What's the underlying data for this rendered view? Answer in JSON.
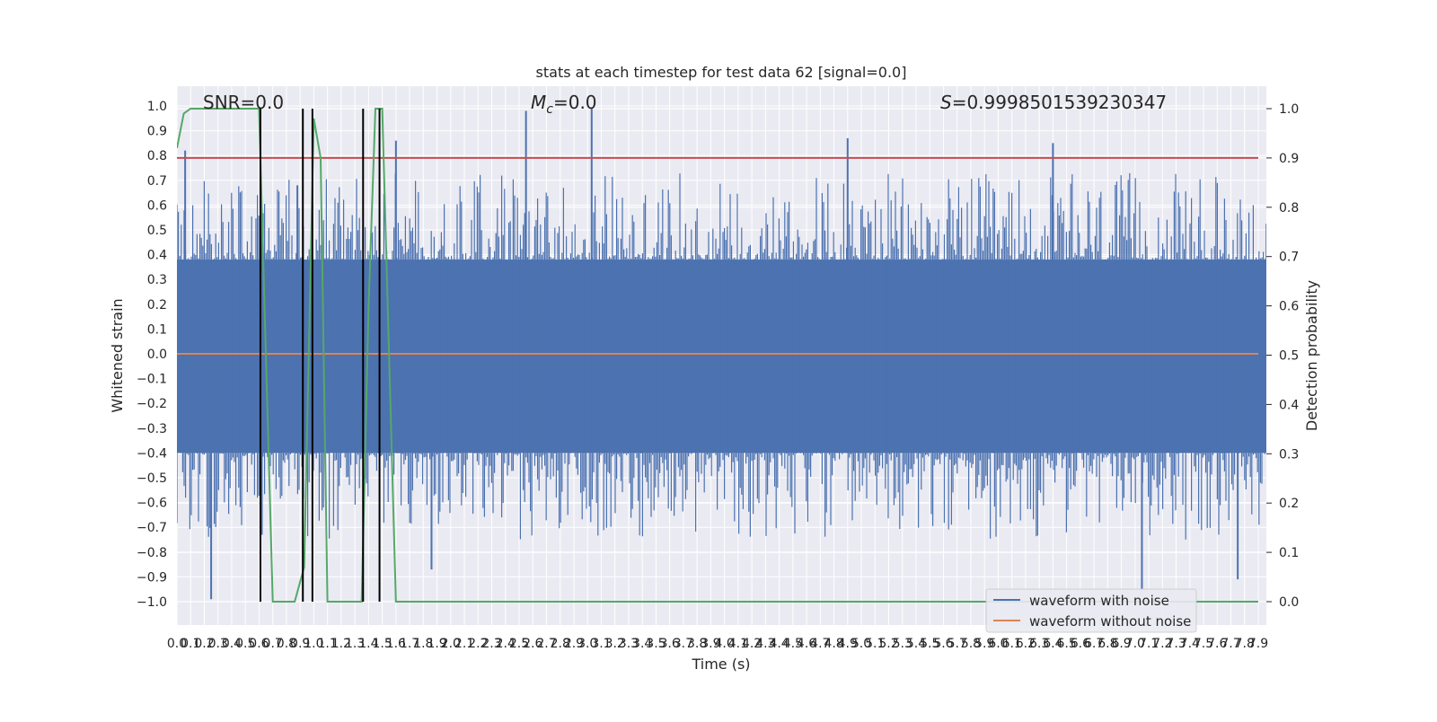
{
  "figure": {
    "title": "stats at each timestep for test data 62 [signal=0.0]",
    "annotations": {
      "snr": "SNR=0.0",
      "mc_symbol": "M",
      "mc_subscript": "c",
      "mc_value": "=0.0",
      "s_symbol": "S",
      "s_value": "=0.9998501539230347"
    },
    "xlabel": "Time (s)",
    "ylabel_left": "Whitened strain",
    "ylabel_right": "Detection probability",
    "legend": [
      {
        "label": "waveform with noise",
        "color": "#4c72b0"
      },
      {
        "label": "waveform without noise",
        "color": "#dd8452"
      }
    ]
  },
  "chart_data": {
    "type": "line",
    "style": "seaborn-darkgrid",
    "background": "#eaeaf2",
    "grid": true,
    "legend_position": "lower-right",
    "x_axis": {
      "label": "Time (s)",
      "range": [
        0.0,
        7.9
      ],
      "ticks": [
        0.0,
        0.1,
        0.2,
        0.3,
        0.4,
        0.5,
        0.6,
        0.7,
        0.8,
        0.9,
        1.0,
        1.1,
        1.2,
        1.3,
        1.4,
        1.5,
        1.6,
        1.7,
        1.8,
        1.9,
        2.0,
        2.1,
        2.2,
        2.3,
        2.4,
        2.5,
        2.6,
        2.7,
        2.8,
        2.9,
        3.0,
        3.1,
        3.2,
        3.3,
        3.4,
        3.5,
        3.6,
        3.7,
        3.8,
        3.9,
        4.0,
        4.1,
        4.2,
        4.3,
        4.4,
        4.5,
        4.6,
        4.7,
        4.8,
        4.9,
        5.0,
        5.1,
        5.2,
        5.3,
        5.4,
        5.5,
        5.6,
        5.7,
        5.8,
        5.9,
        6.0,
        6.1,
        6.2,
        6.3,
        6.4,
        6.5,
        6.6,
        6.7,
        6.8,
        6.9,
        7.0,
        7.1,
        7.2,
        7.3,
        7.4,
        7.5,
        7.6,
        7.7,
        7.8,
        7.9
      ]
    },
    "y_left": {
      "label": "Whitened strain",
      "range": [
        -1.0,
        1.0
      ],
      "ticks": [
        -1.0,
        -0.9,
        -0.8,
        -0.7,
        -0.6,
        -0.5,
        -0.4,
        -0.3,
        -0.2,
        -0.1,
        0.0,
        0.1,
        0.2,
        0.3,
        0.4,
        0.5,
        0.6,
        0.7,
        0.8,
        0.9,
        1.0
      ]
    },
    "y_right": {
      "label": "Detection probability",
      "range": [
        0.0,
        1.0
      ],
      "ticks": [
        0.0,
        0.1,
        0.2,
        0.3,
        0.4,
        0.5,
        0.6,
        0.7,
        0.8,
        0.9,
        1.0
      ]
    },
    "series": [
      {
        "name": "waveform with noise",
        "color": "#4c72b0",
        "kind": "noise-band",
        "band_upper": 0.38,
        "band_lower": -0.4,
        "peaks": [
          {
            "x": 0.06,
            "y": 0.82
          },
          {
            "x": 0.25,
            "y": -0.99
          },
          {
            "x": 0.62,
            "y": -0.73
          },
          {
            "x": 0.88,
            "y": 0.68
          },
          {
            "x": 1.6,
            "y": 0.86
          },
          {
            "x": 1.86,
            "y": -0.87
          },
          {
            "x": 2.55,
            "y": 0.98
          },
          {
            "x": 3.03,
            "y": 0.99
          },
          {
            "x": 4.9,
            "y": 0.87
          },
          {
            "x": 6.4,
            "y": 0.85
          },
          {
            "x": 7.05,
            "y": -0.95
          },
          {
            "x": 7.75,
            "y": -0.91
          }
        ]
      },
      {
        "name": "waveform without noise",
        "color": "#dd8452",
        "x": [
          0.0,
          7.9
        ],
        "y": [
          0.0,
          0.0
        ]
      },
      {
        "name": "",
        "color": "#55a868",
        "axis": "right",
        "x": [
          0.0,
          0.05,
          0.1,
          0.2,
          0.3,
          0.4,
          0.5,
          0.6,
          0.7,
          0.8,
          0.86,
          0.93,
          1.0,
          1.05,
          1.1,
          1.2,
          1.3,
          1.35,
          1.4,
          1.45,
          1.5,
          1.6,
          7.9
        ],
        "y": [
          0.92,
          0.99,
          1.0,
          1.0,
          1.0,
          1.0,
          1.0,
          1.0,
          0.0,
          0.0,
          0.0,
          0.07,
          0.98,
          0.9,
          0.0,
          0.0,
          0.0,
          0.0,
          0.6,
          1.0,
          1.0,
          0.0,
          0.0
        ]
      },
      {
        "name": "",
        "color": "#c44e52",
        "axis": "right",
        "x": [
          0.0,
          7.9
        ],
        "y": [
          0.9,
          0.9
        ]
      }
    ],
    "vlines": [
      0.61,
      0.92,
      0.99,
      1.36,
      1.48
    ]
  }
}
